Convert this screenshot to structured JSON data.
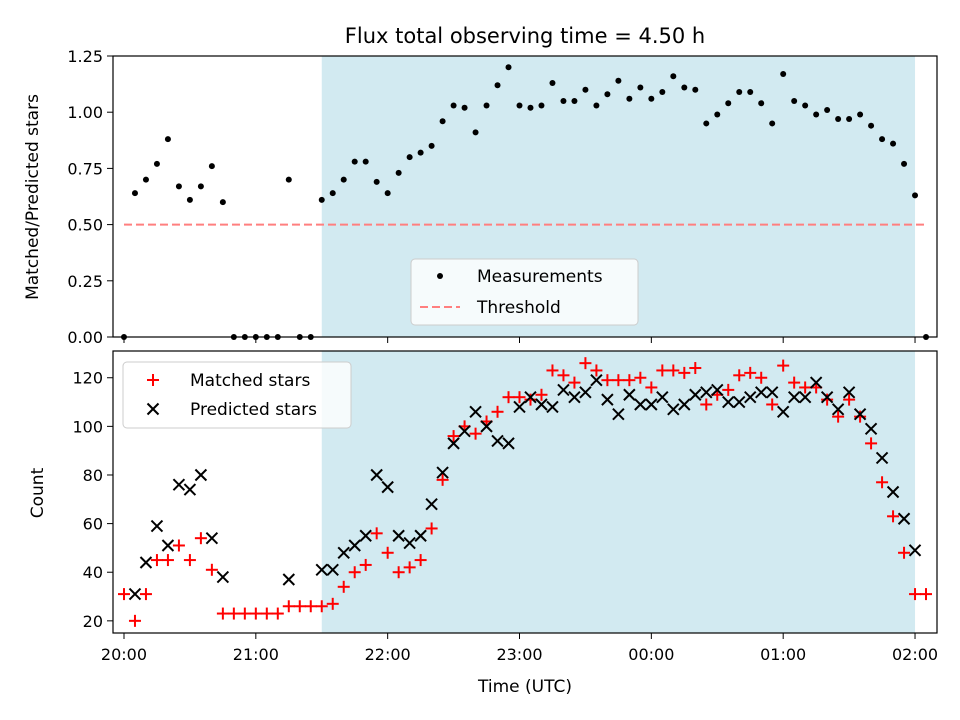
{
  "chart_data": [
    {
      "type": "scatter",
      "title": "Flux total observing time = 4.50 h",
      "xlabel": "",
      "ylabel": "Matched/Predicted stars",
      "ylim": [
        0,
        1.25
      ],
      "xlim": [
        "19:55",
        "02:10"
      ],
      "yticks": [
        "0.00",
        "0.25",
        "0.50",
        "0.75",
        "1.00",
        "1.25"
      ],
      "observing_window": [
        "21:30",
        "02:00"
      ],
      "legend_position": "lower-center",
      "series": [
        {
          "name": "Measurements",
          "color": "#000000",
          "marker": "dot",
          "points": [
            [
              "20:00",
              0.0
            ],
            [
              "20:05",
              0.64
            ],
            [
              "20:10",
              0.7
            ],
            [
              "20:15",
              0.77
            ],
            [
              "20:20",
              0.88
            ],
            [
              "20:25",
              0.67
            ],
            [
              "20:30",
              0.61
            ],
            [
              "20:35",
              0.67
            ],
            [
              "20:40",
              0.76
            ],
            [
              "20:45",
              0.6
            ],
            [
              "20:50",
              0.0
            ],
            [
              "20:55",
              0.0
            ],
            [
              "21:00",
              0.0
            ],
            [
              "21:05",
              0.0
            ],
            [
              "21:10",
              0.0
            ],
            [
              "21:15",
              0.7
            ],
            [
              "21:20",
              0.0
            ],
            [
              "21:25",
              0.0
            ],
            [
              "21:30",
              0.61
            ],
            [
              "21:35",
              0.64
            ],
            [
              "21:40",
              0.7
            ],
            [
              "21:45",
              0.78
            ],
            [
              "21:50",
              0.78
            ],
            [
              "21:55",
              0.69
            ],
            [
              "22:00",
              0.64
            ],
            [
              "22:05",
              0.73
            ],
            [
              "22:10",
              0.8
            ],
            [
              "22:15",
              0.82
            ],
            [
              "22:20",
              0.85
            ],
            [
              "22:25",
              0.96
            ],
            [
              "22:30",
              1.03
            ],
            [
              "22:35",
              1.02
            ],
            [
              "22:40",
              0.91
            ],
            [
              "22:45",
              1.03
            ],
            [
              "22:50",
              1.12
            ],
            [
              "22:55",
              1.2
            ],
            [
              "23:00",
              1.03
            ],
            [
              "23:05",
              1.02
            ],
            [
              "23:10",
              1.03
            ],
            [
              "23:15",
              1.13
            ],
            [
              "23:20",
              1.05
            ],
            [
              "23:25",
              1.05
            ],
            [
              "23:30",
              1.1
            ],
            [
              "23:35",
              1.03
            ],
            [
              "23:40",
              1.08
            ],
            [
              "23:45",
              1.14
            ],
            [
              "23:50",
              1.06
            ],
            [
              "23:55",
              1.11
            ],
            [
              "00:00",
              1.06
            ],
            [
              "00:05",
              1.09
            ],
            [
              "00:10",
              1.16
            ],
            [
              "00:15",
              1.11
            ],
            [
              "00:20",
              1.1
            ],
            [
              "00:25",
              0.95
            ],
            [
              "00:30",
              0.99
            ],
            [
              "00:35",
              1.04
            ],
            [
              "00:40",
              1.09
            ],
            [
              "00:45",
              1.09
            ],
            [
              "00:50",
              1.04
            ],
            [
              "00:55",
              0.95
            ],
            [
              "01:00",
              1.17
            ],
            [
              "01:05",
              1.05
            ],
            [
              "01:10",
              1.03
            ],
            [
              "01:15",
              0.99
            ],
            [
              "01:20",
              1.01
            ],
            [
              "01:25",
              0.97
            ],
            [
              "01:30",
              0.97
            ],
            [
              "01:35",
              0.99
            ],
            [
              "01:40",
              0.94
            ],
            [
              "01:45",
              0.88
            ],
            [
              "01:50",
              0.86
            ],
            [
              "01:55",
              0.77
            ],
            [
              "02:00",
              0.63
            ],
            [
              "02:05",
              0.0
            ]
          ]
        },
        {
          "name": "Threshold",
          "color": "#ff7f7f",
          "style": "dashed",
          "points": [
            [
              "20:00",
              0.5
            ],
            [
              "02:05",
              0.5
            ]
          ]
        }
      ]
    },
    {
      "type": "scatter",
      "title": "",
      "xlabel": "Time (UTC)",
      "ylabel": "Count",
      "ylim": [
        15,
        131
      ],
      "xlim": [
        "19:55",
        "02:10"
      ],
      "xticks": [
        "20:00",
        "21:00",
        "22:00",
        "23:00",
        "00:00",
        "01:00",
        "02:00"
      ],
      "yticks": [
        20,
        40,
        60,
        80,
        100,
        120
      ],
      "observing_window": [
        "21:30",
        "02:00"
      ],
      "legend_position": "upper-left",
      "series": [
        {
          "name": "Matched stars",
          "color": "#ff0000",
          "marker": "plus",
          "points": [
            [
              "20:00",
              31
            ],
            [
              "20:05",
              20
            ],
            [
              "20:10",
              31
            ],
            [
              "20:15",
              45
            ],
            [
              "20:20",
              45
            ],
            [
              "20:25",
              51
            ],
            [
              "20:30",
              45
            ],
            [
              "20:35",
              54
            ],
            [
              "20:40",
              41
            ],
            [
              "20:45",
              23
            ],
            [
              "20:50",
              23
            ],
            [
              "20:55",
              23
            ],
            [
              "21:00",
              23
            ],
            [
              "21:05",
              23
            ],
            [
              "21:10",
              23
            ],
            [
              "21:15",
              26
            ],
            [
              "21:20",
              26
            ],
            [
              "21:25",
              26
            ],
            [
              "21:30",
              26
            ],
            [
              "21:35",
              27
            ],
            [
              "21:40",
              34
            ],
            [
              "21:45",
              40
            ],
            [
              "21:50",
              43
            ],
            [
              "21:55",
              56
            ],
            [
              "22:00",
              48
            ],
            [
              "22:05",
              40
            ],
            [
              "22:10",
              42
            ],
            [
              "22:15",
              45
            ],
            [
              "22:20",
              58
            ],
            [
              "22:25",
              78
            ],
            [
              "22:30",
              96
            ],
            [
              "22:35",
              100
            ],
            [
              "22:40",
              97
            ],
            [
              "22:45",
              102
            ],
            [
              "22:50",
              106
            ],
            [
              "22:55",
              112
            ],
            [
              "23:00",
              112
            ],
            [
              "23:05",
              111
            ],
            [
              "23:10",
              113
            ],
            [
              "23:15",
              123
            ],
            [
              "23:20",
              121
            ],
            [
              "23:25",
              118
            ],
            [
              "23:30",
              126
            ],
            [
              "23:35",
              123
            ],
            [
              "23:40",
              119
            ],
            [
              "23:45",
              119
            ],
            [
              "23:50",
              119
            ],
            [
              "23:55",
              120
            ],
            [
              "00:00",
              116
            ],
            [
              "00:05",
              123
            ],
            [
              "00:10",
              123
            ],
            [
              "00:15",
              122
            ],
            [
              "00:20",
              124
            ],
            [
              "00:25",
              109
            ],
            [
              "00:30",
              113
            ],
            [
              "00:35",
              115
            ],
            [
              "00:40",
              121
            ],
            [
              "00:45",
              122
            ],
            [
              "00:50",
              120
            ],
            [
              "00:55",
              109
            ],
            [
              "01:00",
              125
            ],
            [
              "01:05",
              118
            ],
            [
              "01:10",
              116
            ],
            [
              "01:15",
              116
            ],
            [
              "01:20",
              111
            ],
            [
              "01:25",
              104
            ],
            [
              "01:30",
              111
            ],
            [
              "01:35",
              104
            ],
            [
              "01:40",
              93
            ],
            [
              "01:45",
              77
            ],
            [
              "01:50",
              63
            ],
            [
              "01:55",
              48
            ],
            [
              "02:00",
              31
            ],
            [
              "02:05",
              31
            ]
          ]
        },
        {
          "name": "Predicted stars",
          "color": "#000000",
          "marker": "x",
          "points": [
            [
              "20:05",
              31
            ],
            [
              "20:10",
              44
            ],
            [
              "20:15",
              59
            ],
            [
              "20:20",
              51
            ],
            [
              "20:25",
              76
            ],
            [
              "20:30",
              74
            ],
            [
              "20:35",
              80
            ],
            [
              "20:40",
              54
            ],
            [
              "20:45",
              38
            ],
            [
              "21:15",
              37
            ],
            [
              "21:30",
              41
            ],
            [
              "21:35",
              41
            ],
            [
              "21:40",
              48
            ],
            [
              "21:45",
              51
            ],
            [
              "21:50",
              55
            ],
            [
              "21:55",
              80
            ],
            [
              "22:00",
              75
            ],
            [
              "22:05",
              55
            ],
            [
              "22:10",
              52
            ],
            [
              "22:15",
              55
            ],
            [
              "22:20",
              68
            ],
            [
              "22:25",
              81
            ],
            [
              "22:30",
              93
            ],
            [
              "22:35",
              98
            ],
            [
              "22:40",
              106
            ],
            [
              "22:45",
              100
            ],
            [
              "22:50",
              94
            ],
            [
              "22:55",
              93
            ],
            [
              "23:00",
              108
            ],
            [
              "23:05",
              112
            ],
            [
              "23:10",
              109
            ],
            [
              "23:15",
              108
            ],
            [
              "23:20",
              115
            ],
            [
              "23:25",
              112
            ],
            [
              "23:30",
              114
            ],
            [
              "23:35",
              119
            ],
            [
              "23:40",
              111
            ],
            [
              "23:45",
              105
            ],
            [
              "23:50",
              113
            ],
            [
              "23:55",
              109
            ],
            [
              "00:00",
              109
            ],
            [
              "00:05",
              112
            ],
            [
              "00:10",
              107
            ],
            [
              "00:15",
              109
            ],
            [
              "00:20",
              113
            ],
            [
              "00:25",
              114
            ],
            [
              "00:30",
              115
            ],
            [
              "00:35",
              110
            ],
            [
              "00:40",
              110
            ],
            [
              "00:45",
              112
            ],
            [
              "00:50",
              114
            ],
            [
              "00:55",
              114
            ],
            [
              "01:00",
              106
            ],
            [
              "01:05",
              112
            ],
            [
              "01:10",
              112
            ],
            [
              "01:15",
              118
            ],
            [
              "01:20",
              112
            ],
            [
              "01:25",
              107
            ],
            [
              "01:30",
              114
            ],
            [
              "01:35",
              105
            ],
            [
              "01:40",
              99
            ],
            [
              "01:45",
              87
            ],
            [
              "01:50",
              73
            ],
            [
              "01:55",
              62
            ],
            [
              "02:00",
              49
            ]
          ]
        }
      ]
    }
  ],
  "colors": {
    "observing_window": "#add8e6",
    "axes": "#000000",
    "legend_face": "#ffffff"
  }
}
